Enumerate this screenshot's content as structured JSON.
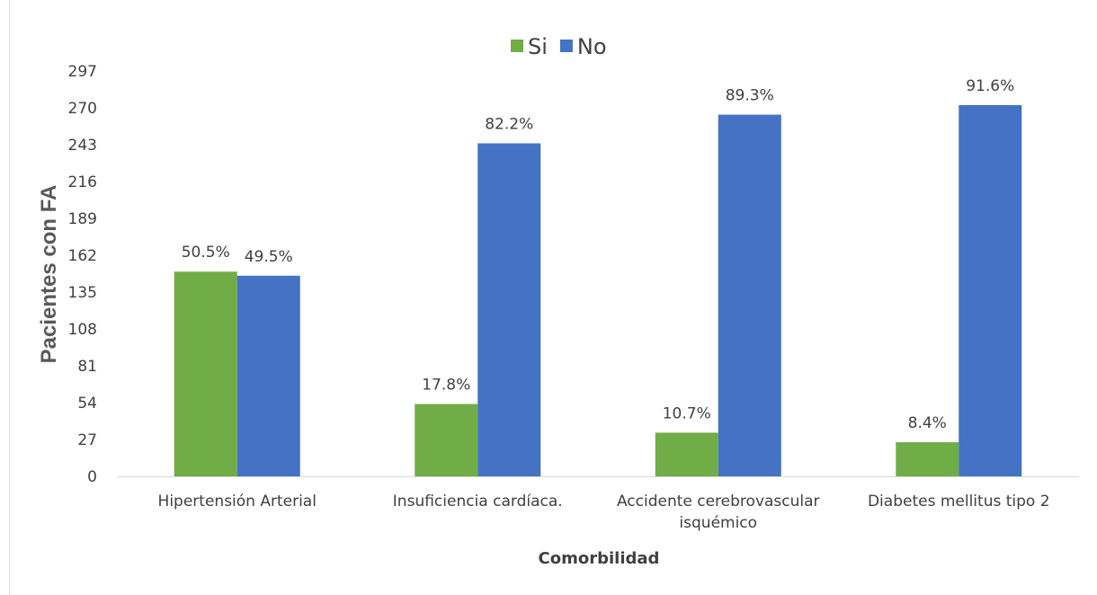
{
  "chart_data": {
    "type": "bar",
    "title": "",
    "xlabel": "Comorbilidad",
    "ylabel": "Pacientes con FA",
    "ylim": [
      0,
      297
    ],
    "yticks": [
      0,
      27,
      54,
      81,
      108,
      135,
      162,
      189,
      216,
      243,
      270,
      297
    ],
    "grid": false,
    "legend_position": "top-center",
    "categories": [
      [
        "Hipertensión Arterial"
      ],
      [
        "Insuficiencia cardíaca."
      ],
      [
        "Accidente cerebrovascular",
        "isquémico"
      ],
      [
        "Diabetes mellitus tipo 2"
      ]
    ],
    "series": [
      {
        "name": "Si",
        "color": "#70ad47",
        "values": [
          150,
          53,
          32,
          25
        ],
        "labels": [
          "50.5%",
          "17.8%",
          "10.7%",
          "8.4%"
        ]
      },
      {
        "name": "No",
        "color": "#4472c4",
        "values": [
          147,
          244,
          265,
          272
        ],
        "labels": [
          "49.5%",
          "82.2%",
          "89.3%",
          "91.6%"
        ]
      }
    ]
  }
}
